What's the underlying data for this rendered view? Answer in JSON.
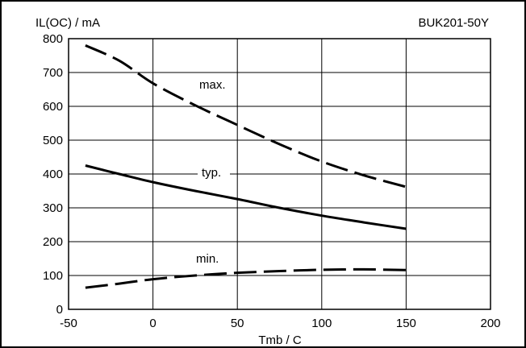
{
  "chart_data": {
    "type": "line",
    "ylabel": "IL(OC) / mA",
    "xlabel": "Tmb / C",
    "part_number": "BUK201-50Y",
    "xlim": [
      -50,
      200
    ],
    "ylim": [
      0,
      800
    ],
    "xticks": [
      -50,
      0,
      50,
      100,
      150,
      200
    ],
    "yticks": [
      0,
      100,
      200,
      300,
      400,
      500,
      600,
      700,
      800
    ],
    "grid": true,
    "series": [
      {
        "name": "max.",
        "style": "dashed",
        "x": [
          -40,
          -20,
          0,
          25,
          50,
          75,
          100,
          125,
          150
        ],
        "y": [
          780,
          735,
          668,
          603,
          545,
          488,
          437,
          396,
          362
        ]
      },
      {
        "name": "typ.",
        "style": "solid",
        "x": [
          -40,
          -20,
          0,
          25,
          50,
          75,
          100,
          125,
          150
        ],
        "y": [
          425,
          400,
          376,
          350,
          326,
          300,
          277,
          257,
          238
        ]
      },
      {
        "name": "min.",
        "style": "dashed",
        "x": [
          -40,
          -20,
          0,
          25,
          50,
          75,
          100,
          125,
          150
        ],
        "y": [
          64,
          76,
          89,
          100,
          108,
          113,
          117,
          118,
          116
        ]
      }
    ]
  }
}
